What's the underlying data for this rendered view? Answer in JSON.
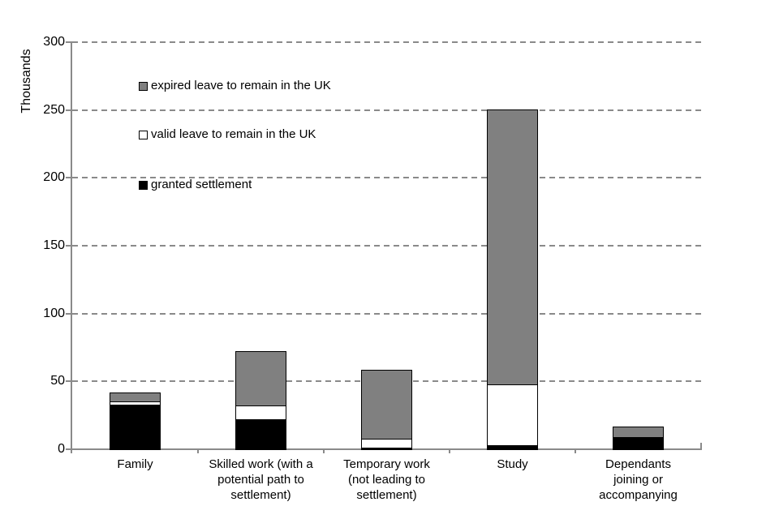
{
  "chart_data": {
    "type": "bar",
    "stacked": true,
    "title": "",
    "xlabel": "",
    "ylabel": "Thousands",
    "ylim": [
      0,
      300
    ],
    "yticks": [
      0,
      50,
      100,
      150,
      200,
      250,
      300
    ],
    "grid": "horizontal-dashed",
    "legend_position": "inside-top-left",
    "categories": [
      "Family",
      "Skilled work (with a potential path to settlement)",
      "Temporary work (not leading to settlement)",
      "Study",
      "Dependants joining or accompanying"
    ],
    "series": [
      {
        "name": "granted settlement",
        "color": "#000000",
        "values": [
          33,
          22,
          1,
          3,
          9
        ]
      },
      {
        "name": "valid leave to remain in the UK",
        "color": "#ffffff",
        "values": [
          2,
          10,
          7,
          45,
          0
        ]
      },
      {
        "name": "expired leave to remain in the UK",
        "color": "#808080",
        "values": [
          6,
          40,
          50,
          202,
          7
        ]
      }
    ]
  },
  "colors": {
    "background": "#ffffff",
    "axis_and_grid": "#8a8a8a",
    "bar_border": "#000000",
    "text": "#000000",
    "granted_settlement": "#000000",
    "valid_leave": "#ffffff",
    "expired_leave": "#808080"
  }
}
